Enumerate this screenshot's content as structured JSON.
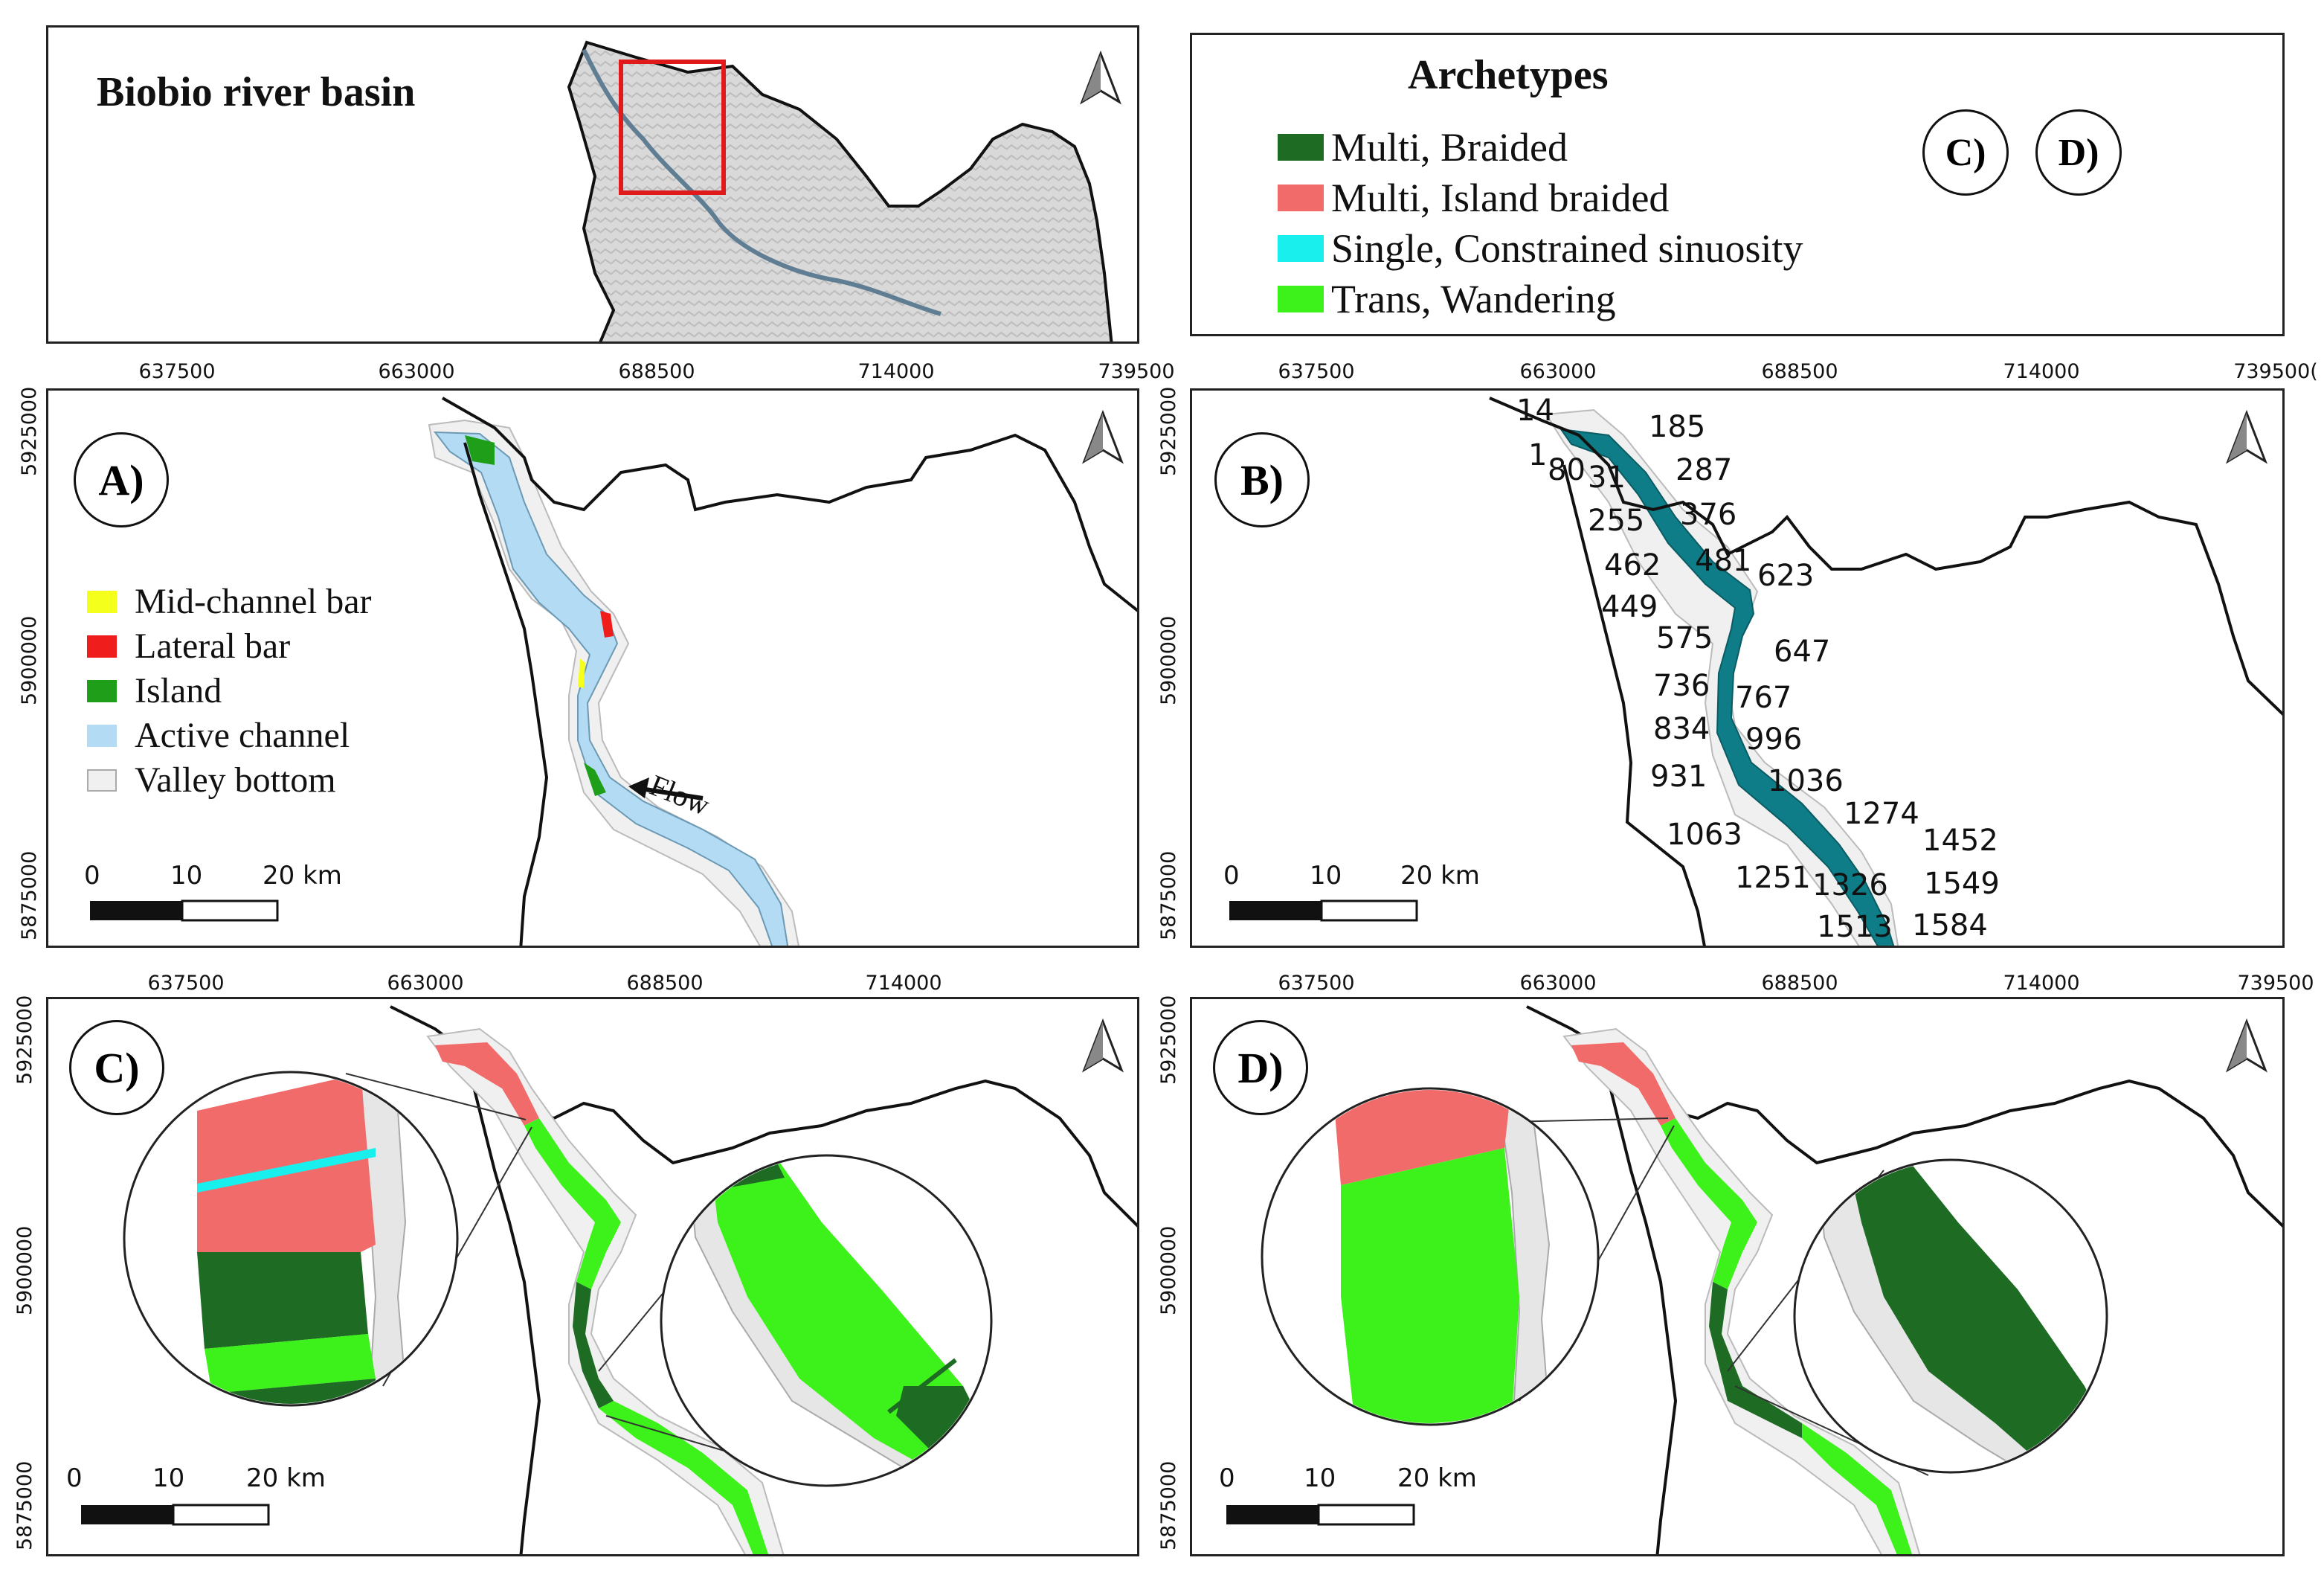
{
  "overview": {
    "title": "Biobio river basin"
  },
  "archetype_legend": {
    "title": "Archetypes",
    "items": [
      {
        "label": "Multi, Braided",
        "color": "#1e6b24"
      },
      {
        "label": "Multi, Island braided",
        "color": "#f26b6b"
      },
      {
        "label": "Single, Constrained sinuosity",
        "color": "#19f0ee"
      },
      {
        "label": "Trans, Wandering",
        "color": "#3df21b"
      }
    ],
    "panel_tags": [
      "C)",
      "D)"
    ]
  },
  "coordinates": {
    "x_ticks": [
      "637500",
      "663000",
      "688500",
      "714000",
      "739500"
    ],
    "x_ticks_right": [
      "637500",
      "663000",
      "688500",
      "714000",
      "739500("
    ],
    "y_ticks": [
      "5925000",
      "5900000",
      "5875000"
    ]
  },
  "panel_a": {
    "letter": "A)",
    "legend": [
      {
        "label": "Mid-channel bar",
        "color": "#f4ff1c"
      },
      {
        "label": "Lateral bar",
        "color": "#f01d1d"
      },
      {
        "label": "Island",
        "color": "#1f9e1a"
      },
      {
        "label": "Active channel",
        "color": "#b3dcf4"
      },
      {
        "label": "Valley bottom",
        "color": "#f0f0f0"
      }
    ],
    "flow_label": "Flow"
  },
  "panel_b": {
    "letter": "B)",
    "segment_labels": [
      "14",
      "185",
      "1",
      "80",
      "31",
      "287",
      "255",
      "376",
      "462",
      "481",
      "623",
      "449",
      "575",
      "647",
      "736",
      "767",
      "834",
      "996",
      "931",
      "1036",
      "1274",
      "1063",
      "1452",
      "1251",
      "1326",
      "1549",
      "1513",
      "1584"
    ]
  },
  "panel_c": {
    "letter": "C)"
  },
  "panel_d": {
    "letter": "D)"
  },
  "scalebar": {
    "ticks": [
      "0",
      "10",
      "20 km"
    ]
  },
  "colors": {
    "river_b": "#0f7d87",
    "boundary": "#111111",
    "inset_box": "#e01a1a"
  }
}
